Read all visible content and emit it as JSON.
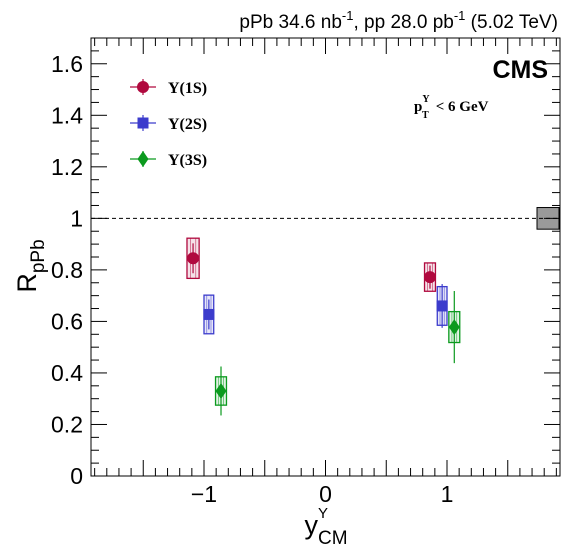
{
  "header": {
    "lumi_line": {
      "p1": "pPb 34.6 nb",
      "s1": "-1",
      "p2": ", pp 28.0 pb",
      "s2": "-1",
      "p3": " (5.02 TeV)"
    }
  },
  "chart_data": {
    "type": "scatter",
    "experiment": "CMS",
    "cut": {
      "base": "p",
      "sub": "T",
      "sup": "Υ",
      "rest": " < 6 GeV"
    },
    "xlabel": {
      "base": "y",
      "sub": "CM",
      "sup": "Υ"
    },
    "ylabel": {
      "base": "R",
      "sub": "pPb"
    },
    "xlim": [
      -1.93,
      1.93
    ],
    "ylim": [
      0,
      1.7
    ],
    "x_ticks": [
      -1,
      0,
      1
    ],
    "x_tick_labels": [
      "−1",
      "0",
      "1"
    ],
    "y_ticks": [
      0,
      0.2,
      0.4,
      0.6,
      0.8,
      1,
      1.2,
      1.4,
      1.6
    ],
    "y_tick_labels": [
      "0",
      "0.2",
      "0.4",
      "0.6",
      "0.8",
      "1",
      "1.2",
      "1.4",
      "1.6"
    ],
    "reference_line": 1,
    "global_uncertainty": {
      "y": 1.0,
      "half_height": 0.042
    },
    "legend_position": "top-left",
    "series": [
      {
        "name": "Υ(1S)",
        "color": "#b0093e",
        "marker": "circle",
        "points": [
          {
            "x": -1.09,
            "y": 0.845,
            "stat": 0.058,
            "syst": 0.078,
            "sys_half_width": 0.05
          },
          {
            "x": 0.86,
            "y": 0.772,
            "stat": 0.045,
            "syst": 0.055,
            "sys_half_width": 0.045
          }
        ]
      },
      {
        "name": "Υ(2S)",
        "color": "#3c3ccc",
        "marker": "square",
        "points": [
          {
            "x": -0.96,
            "y": 0.627,
            "stat": 0.058,
            "syst": 0.075,
            "sys_half_width": 0.04
          },
          {
            "x": 0.96,
            "y": 0.66,
            "stat": 0.085,
            "syst": 0.075,
            "sys_half_width": 0.04
          }
        ]
      },
      {
        "name": "Υ(3S)",
        "color": "#0b9a1e",
        "marker": "diamond",
        "points": [
          {
            "x": -0.86,
            "y": 0.33,
            "stat": 0.095,
            "syst": 0.055,
            "sys_half_width": 0.045
          },
          {
            "x": 1.06,
            "y": 0.578,
            "stat": 0.14,
            "syst": 0.06,
            "sys_half_width": 0.045
          }
        ]
      }
    ]
  }
}
